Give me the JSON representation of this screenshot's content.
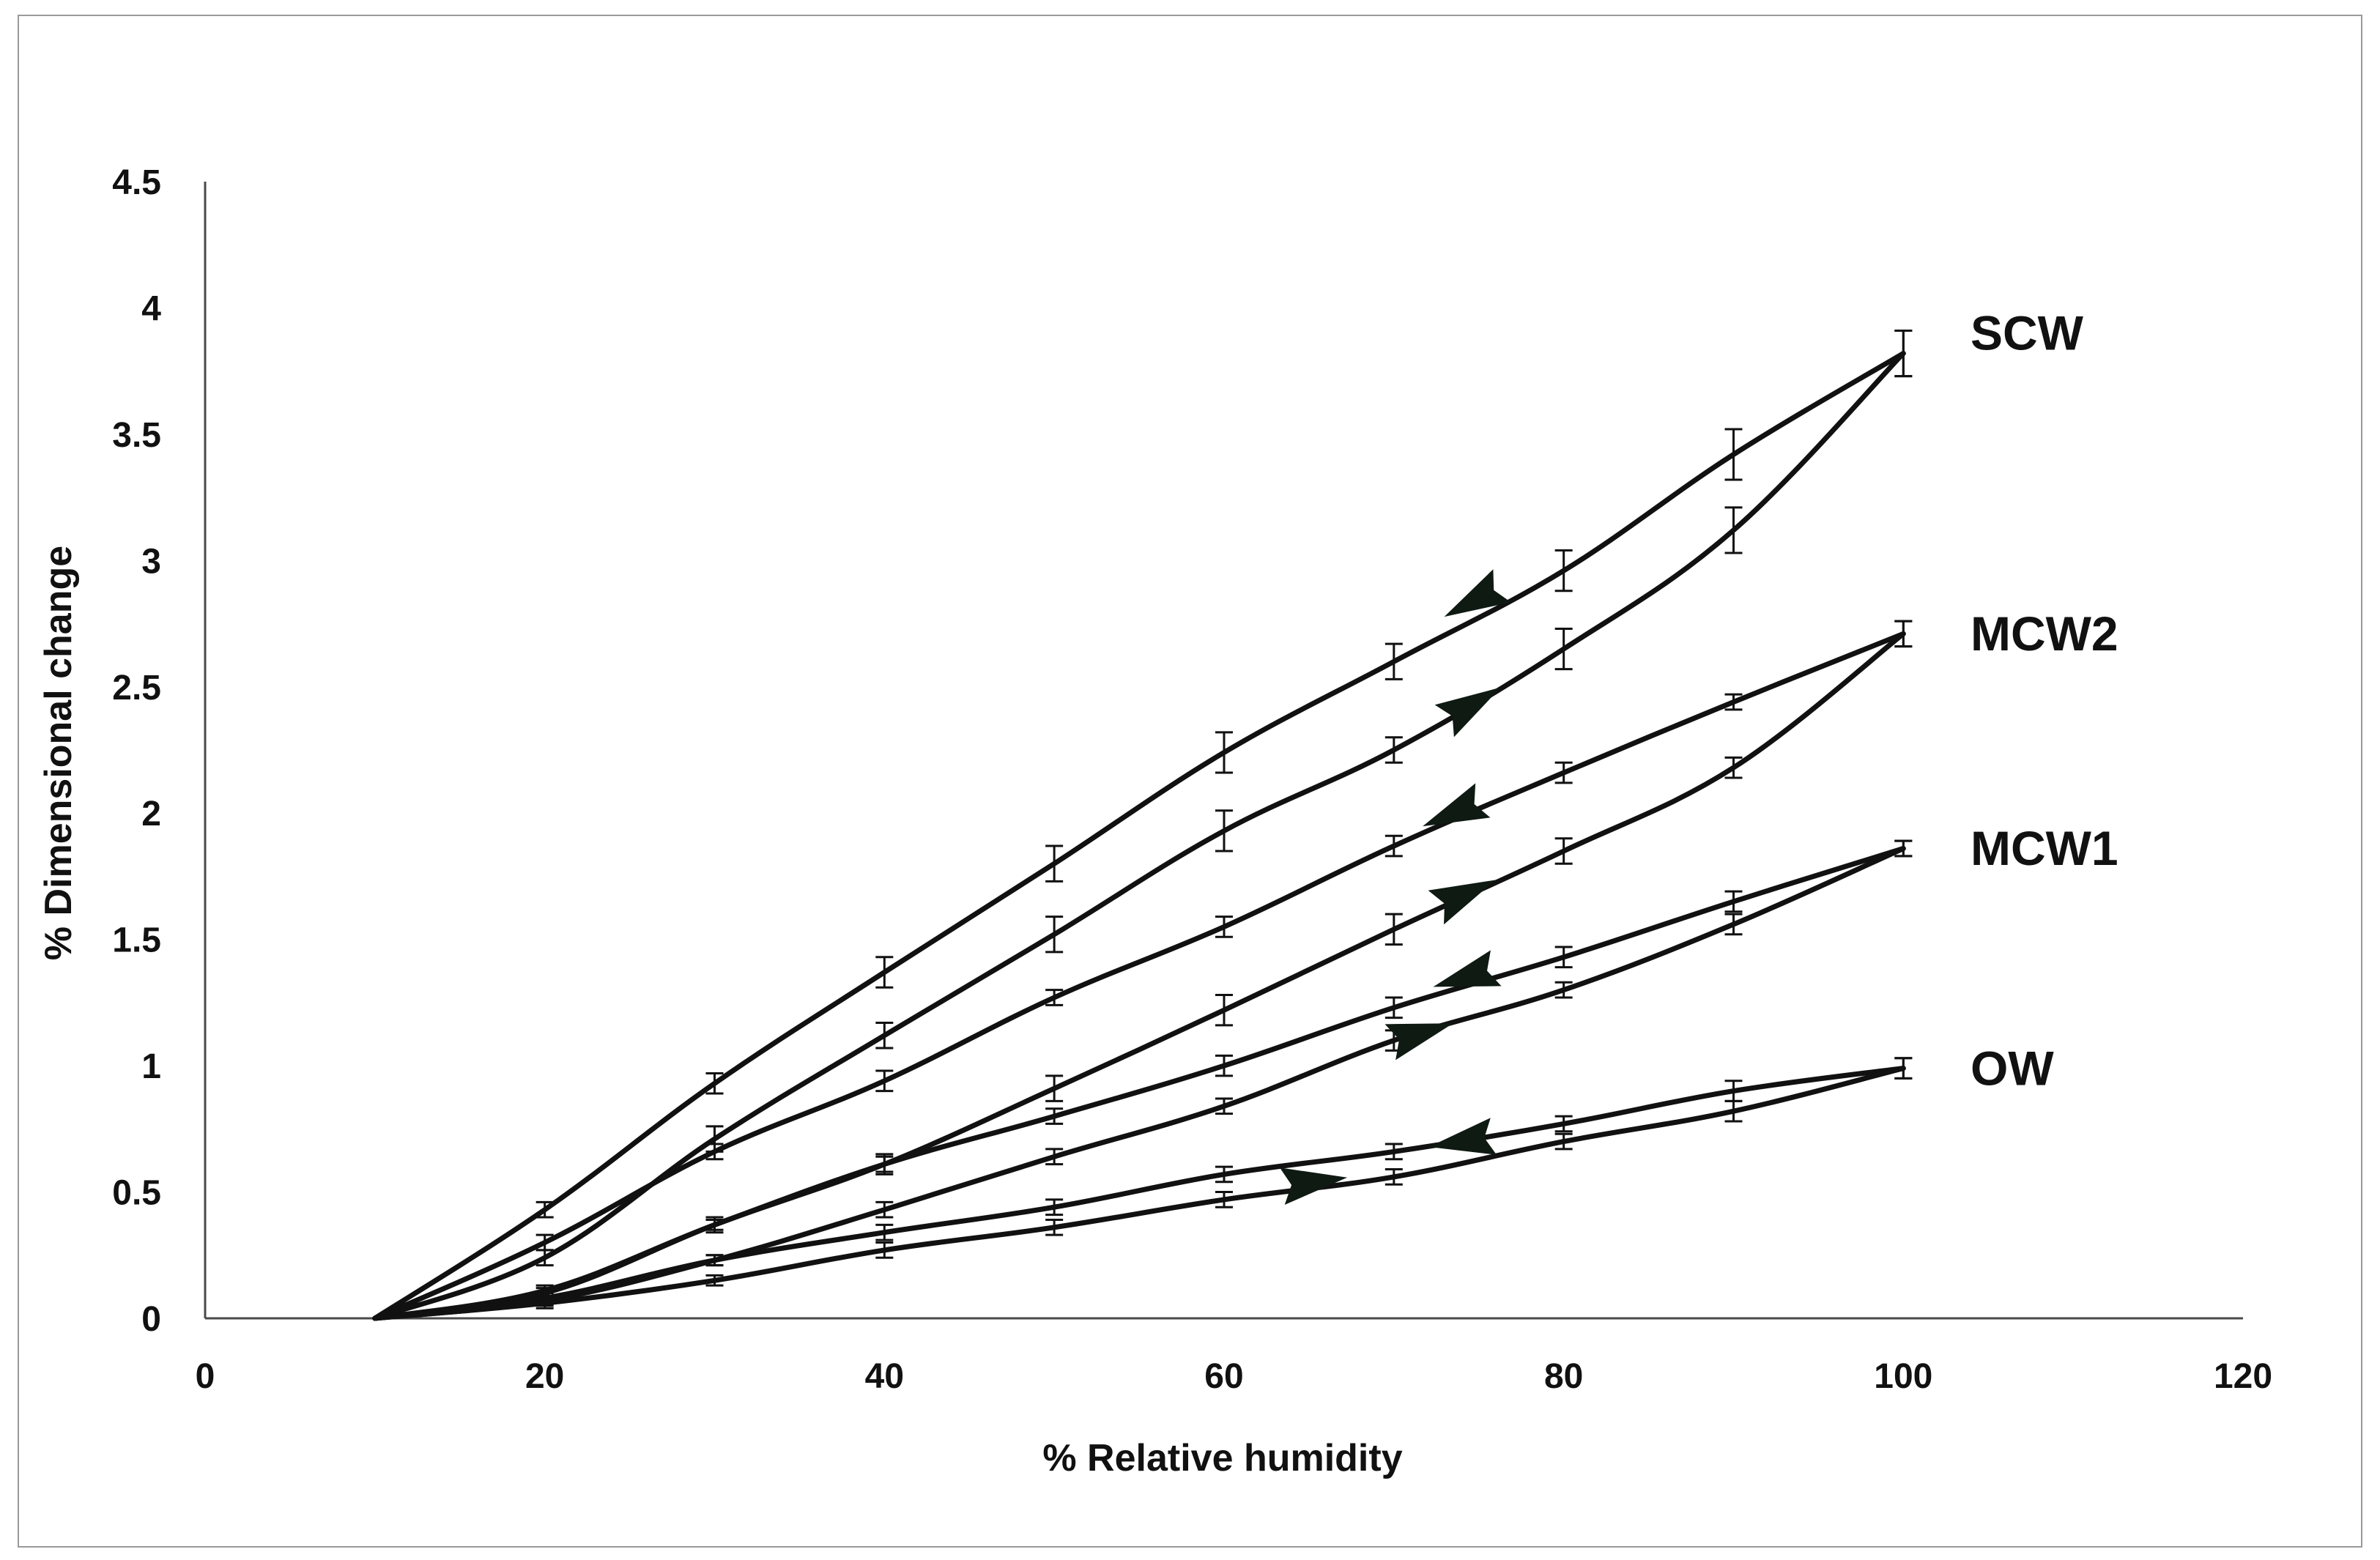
{
  "chart_data": {
    "type": "line",
    "title": "",
    "xlabel": "% Relative humidity",
    "ylabel": "% Dimensional  change",
    "xlim": [
      0,
      120
    ],
    "ylim": [
      0,
      4.5
    ],
    "xticks": [
      0,
      20,
      40,
      60,
      80,
      100,
      120
    ],
    "yticks": [
      0,
      0.5,
      1,
      1.5,
      2,
      2.5,
      3,
      3.5,
      4,
      4.5
    ],
    "grid": false,
    "line_color": "#111111",
    "arrow_color": "#0f1a12",
    "series": [
      {
        "name": "SCW",
        "label": "SCW",
        "desorption": {
          "x": [
            10,
            20,
            30,
            40,
            50,
            60,
            70,
            80,
            90,
            100
          ],
          "y": [
            0,
            0.43,
            0.93,
            1.37,
            1.8,
            2.24,
            2.6,
            2.96,
            3.42,
            3.82
          ],
          "err": [
            0,
            0.03,
            0.04,
            0.06,
            0.07,
            0.08,
            0.07,
            0.08,
            0.1,
            0.09
          ]
        },
        "adsorption": {
          "x": [
            10,
            20,
            30,
            40,
            50,
            60,
            70,
            80,
            90,
            100
          ],
          "y": [
            0,
            0.24,
            0.71,
            1.12,
            1.52,
            1.93,
            2.25,
            2.65,
            3.12,
            3.82
          ],
          "err": [
            0,
            0.03,
            0.05,
            0.05,
            0.07,
            0.08,
            0.05,
            0.08,
            0.09,
            0.09
          ]
        },
        "arrows": [
          {
            "x": 74.7,
            "y": 2.84,
            "dir": "down"
          },
          {
            "x": 74.6,
            "y": 2.43,
            "dir": "up"
          }
        ]
      },
      {
        "name": "MCW2",
        "label": "MCW2",
        "desorption": {
          "x": [
            10,
            20,
            30,
            40,
            50,
            60,
            70,
            80,
            90,
            100
          ],
          "y": [
            0,
            0.3,
            0.66,
            0.94,
            1.27,
            1.55,
            1.87,
            2.16,
            2.44,
            2.71
          ],
          "err": [
            0,
            0.03,
            0.03,
            0.04,
            0.03,
            0.04,
            0.04,
            0.04,
            0.03,
            0.05
          ]
        },
        "adsorption": {
          "x": [
            10,
            20,
            30,
            40,
            50,
            60,
            70,
            80,
            90,
            100
          ],
          "y": [
            0,
            0.1,
            0.37,
            0.61,
            0.91,
            1.22,
            1.54,
            1.85,
            2.18,
            2.71
          ],
          "err": [
            0,
            0.02,
            0.03,
            0.04,
            0.05,
            0.06,
            0.06,
            0.05,
            0.04,
            0.05
          ]
        },
        "arrows": [
          {
            "x": 73.5,
            "y": 2.0,
            "dir": "down"
          },
          {
            "x": 74.2,
            "y": 1.68,
            "dir": "up"
          }
        ]
      },
      {
        "name": "MCW1",
        "label": "MCW1",
        "desorption": {
          "x": [
            10,
            20,
            30,
            40,
            50,
            60,
            70,
            80,
            90,
            100
          ],
          "y": [
            0,
            0.11,
            0.37,
            0.61,
            0.8,
            1.0,
            1.23,
            1.43,
            1.65,
            1.86
          ],
          "err": [
            0,
            0.02,
            0.02,
            0.03,
            0.03,
            0.04,
            0.04,
            0.04,
            0.04,
            0.03
          ]
        },
        "adsorption": {
          "x": [
            10,
            20,
            30,
            40,
            50,
            60,
            70,
            80,
            90,
            100
          ],
          "y": [
            0,
            0.07,
            0.23,
            0.43,
            0.64,
            0.84,
            1.1,
            1.3,
            1.56,
            1.86
          ],
          "err": [
            0,
            0.02,
            0.02,
            0.03,
            0.03,
            0.03,
            0.04,
            0.03,
            0.04,
            0.03
          ]
        },
        "arrows": [
          {
            "x": 74.2,
            "y": 1.35,
            "dir": "down"
          },
          {
            "x": 71.6,
            "y": 1.13,
            "dir": "up"
          }
        ]
      },
      {
        "name": "OW",
        "label": "OW",
        "desorption": {
          "x": [
            10,
            20,
            30,
            40,
            50,
            60,
            70,
            80,
            90,
            100
          ],
          "y": [
            0,
            0.08,
            0.23,
            0.34,
            0.44,
            0.57,
            0.66,
            0.77,
            0.9,
            0.99
          ],
          "err": [
            0,
            0.02,
            0.02,
            0.03,
            0.03,
            0.03,
            0.03,
            0.03,
            0.04,
            0.04
          ]
        },
        "adsorption": {
          "x": [
            10,
            20,
            30,
            40,
            50,
            60,
            70,
            80,
            90,
            100
          ],
          "y": [
            0,
            0.06,
            0.15,
            0.27,
            0.36,
            0.47,
            0.56,
            0.7,
            0.82,
            0.99
          ],
          "err": [
            0,
            0.02,
            0.02,
            0.03,
            0.03,
            0.03,
            0.03,
            0.03,
            0.04,
            0.04
          ]
        },
        "arrows": [
          {
            "x": 74.0,
            "y": 0.7,
            "dir": "down"
          },
          {
            "x": 65.3,
            "y": 0.54,
            "dir": "up"
          }
        ]
      }
    ]
  }
}
